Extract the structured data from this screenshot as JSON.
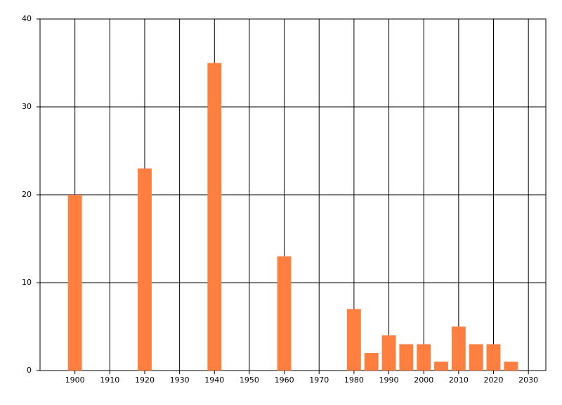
{
  "chart_data": {
    "type": "bar",
    "x": [
      1900,
      1920,
      1940,
      1960,
      1980,
      1985,
      1990,
      1995,
      2000,
      2005,
      2010,
      2015,
      2020,
      2025
    ],
    "values": [
      20,
      23,
      35,
      13,
      7,
      2,
      4,
      3,
      3,
      1,
      5,
      3,
      3,
      1
    ],
    "color": "#ff7f40",
    "xlim": [
      1890,
      2035
    ],
    "xticks": [
      1900,
      1910,
      1920,
      1930,
      1940,
      1950,
      1960,
      1970,
      1980,
      1990,
      2000,
      2010,
      2020,
      2030
    ],
    "ylim": [
      0,
      40
    ],
    "yticks": [
      0,
      10,
      20,
      30,
      40
    ],
    "grid": true
  }
}
